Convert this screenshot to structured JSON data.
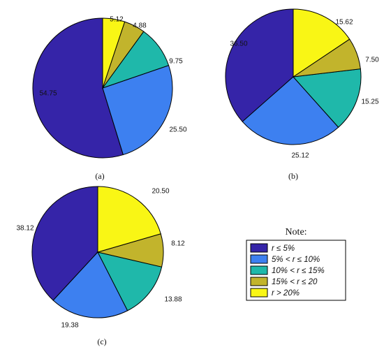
{
  "colors": {
    "c1": "#3524a8",
    "c2": "#3d80f0",
    "c3": "#1fb8aa",
    "c4": "#c2b42c",
    "c5": "#f9f615"
  },
  "legend": {
    "title": "Note:",
    "entries": [
      {
        "label": "r ≤ 5%",
        "color": "#3524a8"
      },
      {
        "label": "5% < r ≤ 10%",
        "color": "#3d80f0"
      },
      {
        "label": "10% < r ≤ 15%",
        "color": "#1fb8aa"
      },
      {
        "label": "15% < r ≤ 20",
        "color": "#c2b42c"
      },
      {
        "label": "r > 20%",
        "color": "#f9f615"
      }
    ]
  },
  "chart_data": [
    {
      "type": "pie",
      "panel_label": "(a)",
      "categories": [
        "r ≤ 5%",
        "5% < r ≤ 10%",
        "10% < r ≤ 15%",
        "15% < r ≤ 20",
        "r > 20%"
      ],
      "values": [
        54.75,
        25.5,
        9.75,
        4.88,
        5.12
      ],
      "labels": [
        "54.75",
        "25.50",
        "9.75",
        "4.88",
        "5.12"
      ]
    },
    {
      "type": "pie",
      "panel_label": "(b)",
      "categories": [
        "r ≤ 5%",
        "5% < r ≤ 10%",
        "10% < r ≤ 15%",
        "15% < r ≤ 20",
        "r > 20%"
      ],
      "values": [
        36.5,
        25.12,
        15.25,
        7.5,
        15.62
      ],
      "labels": [
        "36.50",
        "25.12",
        "15.25",
        "7.50",
        "15.62"
      ]
    },
    {
      "type": "pie",
      "panel_label": "(c)",
      "categories": [
        "r ≤ 5%",
        "5% < r ≤ 10%",
        "10% < r ≤ 15%",
        "15% < r ≤ 20",
        "r > 20%"
      ],
      "values": [
        38.12,
        19.38,
        13.88,
        8.12,
        20.5
      ],
      "labels": [
        "38.12",
        "19.38",
        "13.88",
        "8.12",
        "20.50"
      ]
    }
  ]
}
